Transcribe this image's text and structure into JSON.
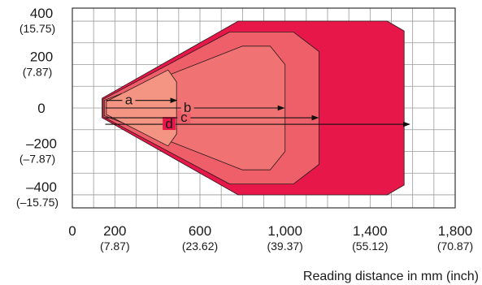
{
  "chart_data": {
    "type": "area",
    "xlabel": "Reading distance in mm (inch)",
    "ylabel": "",
    "xlim": [
      0,
      1800
    ],
    "ylim": [
      -460,
      460
    ],
    "grid": true,
    "x_ticks": [
      {
        "value": 0,
        "label": "0",
        "sub": ""
      },
      {
        "value": 200,
        "label": "200",
        "sub": "(7.87)"
      },
      {
        "value": 600,
        "label": "600",
        "sub": "(23.62)"
      },
      {
        "value": 1000,
        "label": "1,000",
        "sub": "(39.37)"
      },
      {
        "value": 1400,
        "label": "1,400",
        "sub": "(55.12)"
      },
      {
        "value": 1800,
        "label": "1,800",
        "sub": "(70.87)"
      }
    ],
    "y_ticks": [
      {
        "value": 400,
        "label": "400",
        "sub": "(15.75)"
      },
      {
        "value": 200,
        "label": "200",
        "sub": "(7.87)"
      },
      {
        "value": 0,
        "label": "0",
        "sub": ""
      },
      {
        "value": -200,
        "label": "–200",
        "sub": "(–7.87)"
      },
      {
        "value": -400,
        "label": "–400",
        "sub": "(–15.75)"
      }
    ],
    "series": [
      {
        "name": "d",
        "color": "#e8174a",
        "points": [
          [
            140,
            45
          ],
          [
            780,
            400
          ],
          [
            1480,
            400
          ],
          [
            1560,
            355
          ],
          [
            1560,
            -355
          ],
          [
            1480,
            -400
          ],
          [
            780,
            -400
          ],
          [
            140,
            -45
          ]
        ],
        "arrow": {
          "x_start": 155,
          "x_end": 1585,
          "y": -75
        }
      },
      {
        "name": "c",
        "color": "#ef5f6a",
        "points": [
          [
            145,
            40
          ],
          [
            740,
            350
          ],
          [
            1040,
            350
          ],
          [
            1160,
            260
          ],
          [
            1160,
            -260
          ],
          [
            1040,
            -350
          ],
          [
            740,
            -350
          ],
          [
            145,
            -40
          ]
        ],
        "arrow": {
          "x_start": 155,
          "x_end": 1155,
          "y": -45
        }
      },
      {
        "name": "b",
        "color": "#f07272",
        "points": [
          [
            150,
            35
          ],
          [
            800,
            285
          ],
          [
            930,
            285
          ],
          [
            1000,
            200
          ],
          [
            1000,
            -200
          ],
          [
            930,
            -285
          ],
          [
            800,
            -285
          ],
          [
            150,
            -35
          ]
        ],
        "arrow": {
          "x_start": 155,
          "x_end": 995,
          "y": 0
        }
      },
      {
        "name": "a",
        "color": "#f49483",
        "points": [
          [
            160,
            30
          ],
          [
            450,
            175
          ],
          [
            490,
            120
          ],
          [
            490,
            -120
          ],
          [
            450,
            -175
          ],
          [
            160,
            -30
          ]
        ],
        "arrow": {
          "x_start": 160,
          "x_end": 490,
          "y": 35
        }
      }
    ]
  }
}
